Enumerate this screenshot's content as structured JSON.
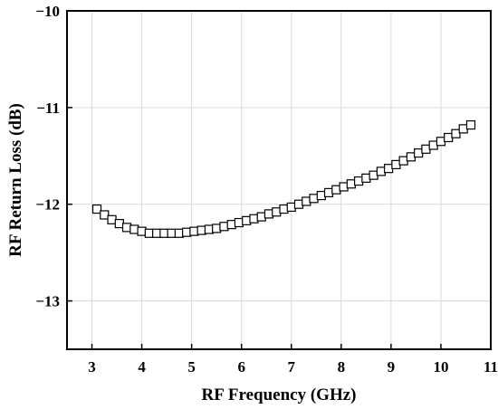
{
  "chart_data": {
    "type": "scatter",
    "title": "",
    "xlabel": "RF  Frequency (GHz)",
    "ylabel": "RF  Return  Loss (dB)",
    "xlim": [
      2.5,
      11
    ],
    "ylim": [
      -13.5,
      -10
    ],
    "x_ticks": [
      3,
      4,
      5,
      6,
      7,
      8,
      9,
      10,
      11
    ],
    "y_ticks": [
      -10,
      -11,
      -12,
      -13
    ],
    "x_tick_labels": [
      "3",
      "4",
      "5",
      "6",
      "7",
      "8",
      "9",
      "10",
      "11"
    ],
    "y_tick_labels": [
      "−10",
      "−11",
      "−12",
      "−13"
    ],
    "grid": true,
    "marker": "hollow-square",
    "series": [
      {
        "x": [
          3.1,
          3.25,
          3.4,
          3.55,
          3.7,
          3.85,
          4.0,
          4.15,
          4.3,
          4.45,
          4.6,
          4.75,
          4.9,
          5.05,
          5.2,
          5.35,
          5.5,
          5.65,
          5.8,
          5.95,
          6.1,
          6.25,
          6.4,
          6.55,
          6.7,
          6.85,
          7.0,
          7.15,
          7.3,
          7.45,
          7.6,
          7.75,
          7.9,
          8.05,
          8.2,
          8.35,
          8.5,
          8.65,
          8.8,
          8.95,
          9.1,
          9.25,
          9.4,
          9.55,
          9.7,
          9.85,
          10.0,
          10.15,
          10.3,
          10.45,
          10.6
        ],
        "y": [
          -12.05,
          -12.11,
          -12.16,
          -12.2,
          -12.24,
          -12.26,
          -12.28,
          -12.3,
          -12.3,
          -12.3,
          -12.3,
          -12.3,
          -12.29,
          -12.28,
          -12.27,
          -12.26,
          -12.25,
          -12.23,
          -12.21,
          -12.19,
          -12.17,
          -12.15,
          -12.13,
          -12.1,
          -12.08,
          -12.05,
          -12.03,
          -12.0,
          -11.97,
          -11.94,
          -11.91,
          -11.88,
          -11.85,
          -11.82,
          -11.79,
          -11.76,
          -11.73,
          -11.7,
          -11.66,
          -11.63,
          -11.59,
          -11.55,
          -11.51,
          -11.47,
          -11.43,
          -11.39,
          -11.35,
          -11.31,
          -11.27,
          -11.22,
          -11.18
        ]
      }
    ]
  }
}
